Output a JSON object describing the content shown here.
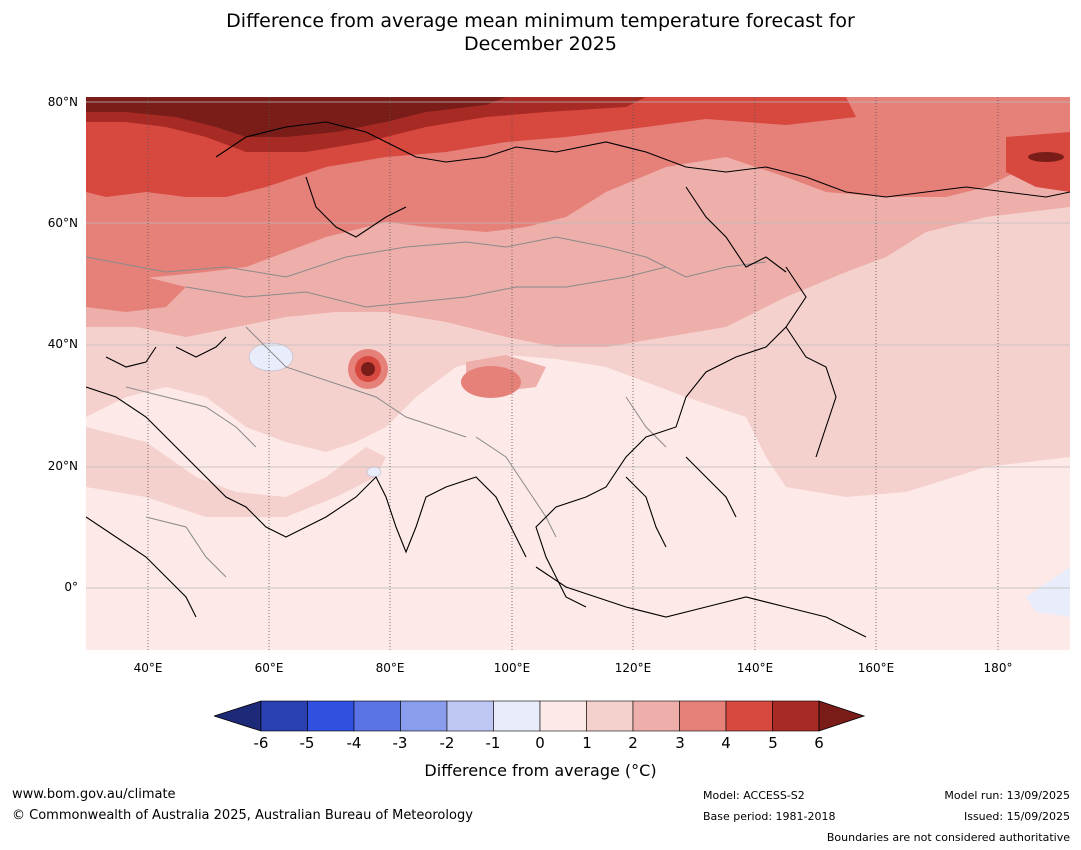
{
  "title_line1": "Difference from average mean minimum temperature forecast for",
  "title_line2": "December 2025",
  "lat_labels": [
    "80°N",
    "60°N",
    "40°N",
    "20°N",
    "0°"
  ],
  "lon_labels": [
    "40°E",
    "60°E",
    "80°E",
    "100°E",
    "120°E",
    "140°E",
    "160°E",
    "180°"
  ],
  "colorbar": {
    "ticks": [
      "-6",
      "-5",
      "-4",
      "-3",
      "-2",
      "-1",
      "0",
      "1",
      "2",
      "3",
      "4",
      "5",
      "6"
    ],
    "colors": [
      "#1c2a78",
      "#2a3fb0",
      "#3050e0",
      "#5a73e4",
      "#8a9ded",
      "#bfc8f4",
      "#e9ecfb",
      "#fde9e7",
      "#f5d1ce",
      "#eeaeaa",
      "#e6817a",
      "#d7483f",
      "#a82a24",
      "#7a1d18"
    ],
    "label": "Difference from average (°C)"
  },
  "footer": {
    "website": "www.bom.gov.au/climate",
    "copyright": "© Commonwealth of Australia 2025, Australian Bureau of Meteorology",
    "model": "Model: ACCESS-S2",
    "base_period": "Base period: 1981-2018",
    "model_run": "Model run: 13/09/2025",
    "issued": "Issued: 15/09/2025",
    "disclaimer": "Boundaries are not considered authoritative"
  }
}
